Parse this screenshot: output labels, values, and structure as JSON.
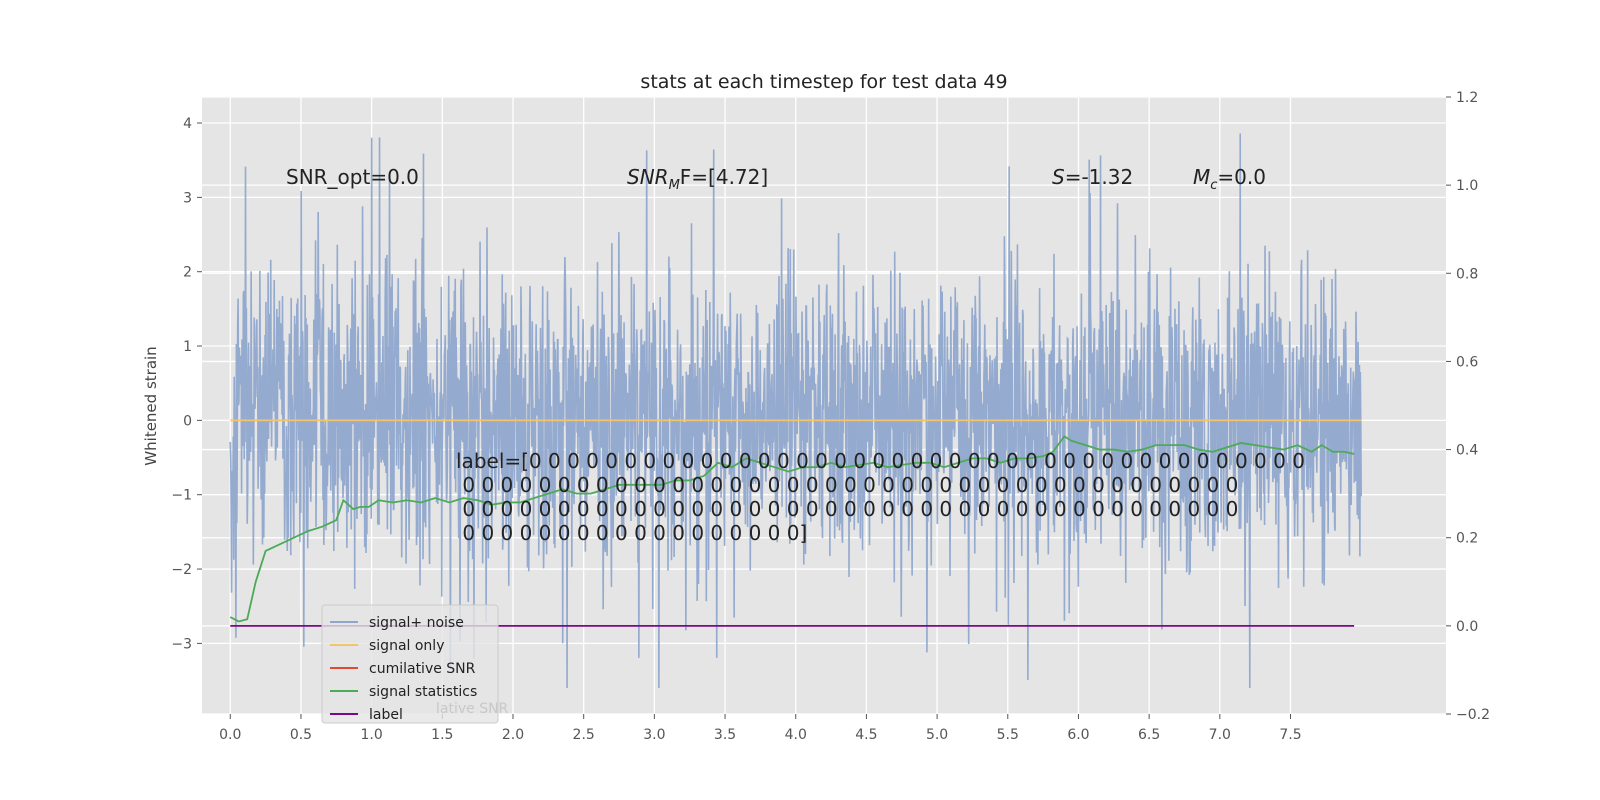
{
  "chart_data": {
    "type": "line",
    "title": "stats at each timestep for test data 49",
    "ylabel": "Whitened strain",
    "xlabel": "",
    "xlim": [
      -0.2,
      8.6
    ],
    "ylim": [
      -3.95,
      4.35
    ],
    "y2lim": [
      -0.2,
      1.2
    ],
    "x_ticks": [
      "0.0",
      "0.5",
      "1.0",
      "1.5",
      "2.0",
      "2.5",
      "3.0",
      "3.5",
      "4.0",
      "4.5",
      "5.0",
      "5.5",
      "6.0",
      "6.5",
      "7.0",
      "7.5"
    ],
    "x_tick_values": [
      0,
      0.5,
      1,
      1.5,
      2,
      2.5,
      3,
      3.5,
      4,
      4.5,
      5,
      5.5,
      6,
      6.5,
      7,
      7.5
    ],
    "y_ticks": [
      "4",
      "3",
      "2",
      "1",
      "0",
      "−1",
      "−2",
      "−3"
    ],
    "y_tick_values": [
      4,
      3,
      2,
      1,
      0,
      -1,
      -2,
      -3
    ],
    "y2_ticks": [
      "1.2",
      "1.0",
      "0.8",
      "0.6",
      "0.4",
      "0.2",
      "0.0",
      "−0.2"
    ],
    "y2_tick_values": [
      1.2,
      1.0,
      0.8,
      0.6,
      0.4,
      0.2,
      0.0,
      -0.2
    ],
    "grid": true,
    "legend_position": "lower-left",
    "series": [
      {
        "name": "signal+ noise",
        "axis": "left",
        "color": "#8fa6cc",
        "x_range": [
          0,
          8.0
        ],
        "description_values": "noise ~ ±1.5, peaks up to 4.0 and down to -3.6"
      },
      {
        "name": "signal only",
        "axis": "left",
        "color": "#f2c46c",
        "x": [
          0,
          8.0
        ],
        "values": [
          0,
          0
        ]
      },
      {
        "name": "cumilative SNR",
        "axis": "right",
        "color": "#e24a33",
        "x": [],
        "values": []
      },
      {
        "name": "signal statistics",
        "axis": "right",
        "color": "#4daa57",
        "x": [
          0,
          0.06,
          0.12,
          0.18,
          0.25,
          0.35,
          0.45,
          0.55,
          0.65,
          0.75,
          0.8,
          0.87,
          0.92,
          0.98,
          1.05,
          1.15,
          1.25,
          1.35,
          1.45,
          1.55,
          1.65,
          1.75,
          1.85,
          1.95,
          2.05,
          2.15,
          2.25,
          2.35,
          2.45,
          2.55,
          2.65,
          2.75,
          2.85,
          2.95,
          3.05,
          3.15,
          3.25,
          3.35,
          3.45,
          3.55,
          3.65,
          3.75,
          3.85,
          3.95,
          4.05,
          4.15,
          4.25,
          4.35,
          4.45,
          4.55,
          4.65,
          4.75,
          4.85,
          4.95,
          5.05,
          5.15,
          5.25,
          5.35,
          5.45,
          5.55,
          5.65,
          5.75,
          5.82,
          5.9,
          5.95,
          6.05,
          6.15,
          6.25,
          6.35,
          6.45,
          6.55,
          6.65,
          6.75,
          6.85,
          6.95,
          7.05,
          7.15,
          7.25,
          7.35,
          7.45,
          7.55,
          7.65,
          7.72,
          7.8,
          7.88,
          7.95
        ],
        "values": [
          0.02,
          0.01,
          0.015,
          0.1,
          0.17,
          0.185,
          0.2,
          0.215,
          0.225,
          0.24,
          0.285,
          0.265,
          0.27,
          0.27,
          0.285,
          0.28,
          0.285,
          0.28,
          0.29,
          0.28,
          0.29,
          0.285,
          0.275,
          0.28,
          0.28,
          0.29,
          0.3,
          0.31,
          0.3,
          0.3,
          0.31,
          0.32,
          0.32,
          0.32,
          0.32,
          0.33,
          0.33,
          0.34,
          0.37,
          0.36,
          0.38,
          0.37,
          0.36,
          0.35,
          0.36,
          0.36,
          0.37,
          0.36,
          0.365,
          0.37,
          0.36,
          0.365,
          0.37,
          0.37,
          0.36,
          0.37,
          0.38,
          0.38,
          0.37,
          0.38,
          0.38,
          0.385,
          0.395,
          0.43,
          0.42,
          0.41,
          0.4,
          0.4,
          0.395,
          0.4,
          0.41,
          0.41,
          0.41,
          0.4,
          0.395,
          0.405,
          0.415,
          0.41,
          0.405,
          0.4,
          0.41,
          0.395,
          0.41,
          0.395,
          0.395,
          0.39
        ]
      },
      {
        "name": "label",
        "axis": "right",
        "color": "#7b0a87",
        "x": [
          0,
          7.95
        ],
        "values": [
          0,
          0
        ]
      }
    ],
    "annotations": [
      {
        "text": "SNR_opt=0.0"
      },
      {
        "text": "SNR",
        "sub": "M",
        "suffix": "F=[4.72]"
      },
      {
        "text": "S",
        "suffix": "=-1.32"
      },
      {
        "text": "M",
        "sub": "c",
        "suffix": "=0.0"
      }
    ],
    "label_lines": [
      "label=[0 0 0 0 0 0 0 0 0 0 0 0 0 0 0 0 0 0 0 0 0 0 0 0 0 0 0 0 0 0 0 0 0 0 0 0 0 0 0 0 0",
      " 0 0 0 0 0 0 0 0 0 0 0 0 0 0 0 0 0 0 0 0 0 0 0 0 0 0 0 0 0 0 0 0 0 0 0 0 0 0 0 0 0",
      " 0 0 0 0 0 0 0 0 0 0 0 0 0 0 0 0 0 0 0 0 0 0 0 0 0 0 0 0 0 0 0 0 0 0 0 0 0 0 0 0 0",
      " 0 0 0 0 0 0 0 0 0 0 0 0 0 0 0 0 0 0]"
    ],
    "legend_ghost_text": "lative SNR"
  }
}
